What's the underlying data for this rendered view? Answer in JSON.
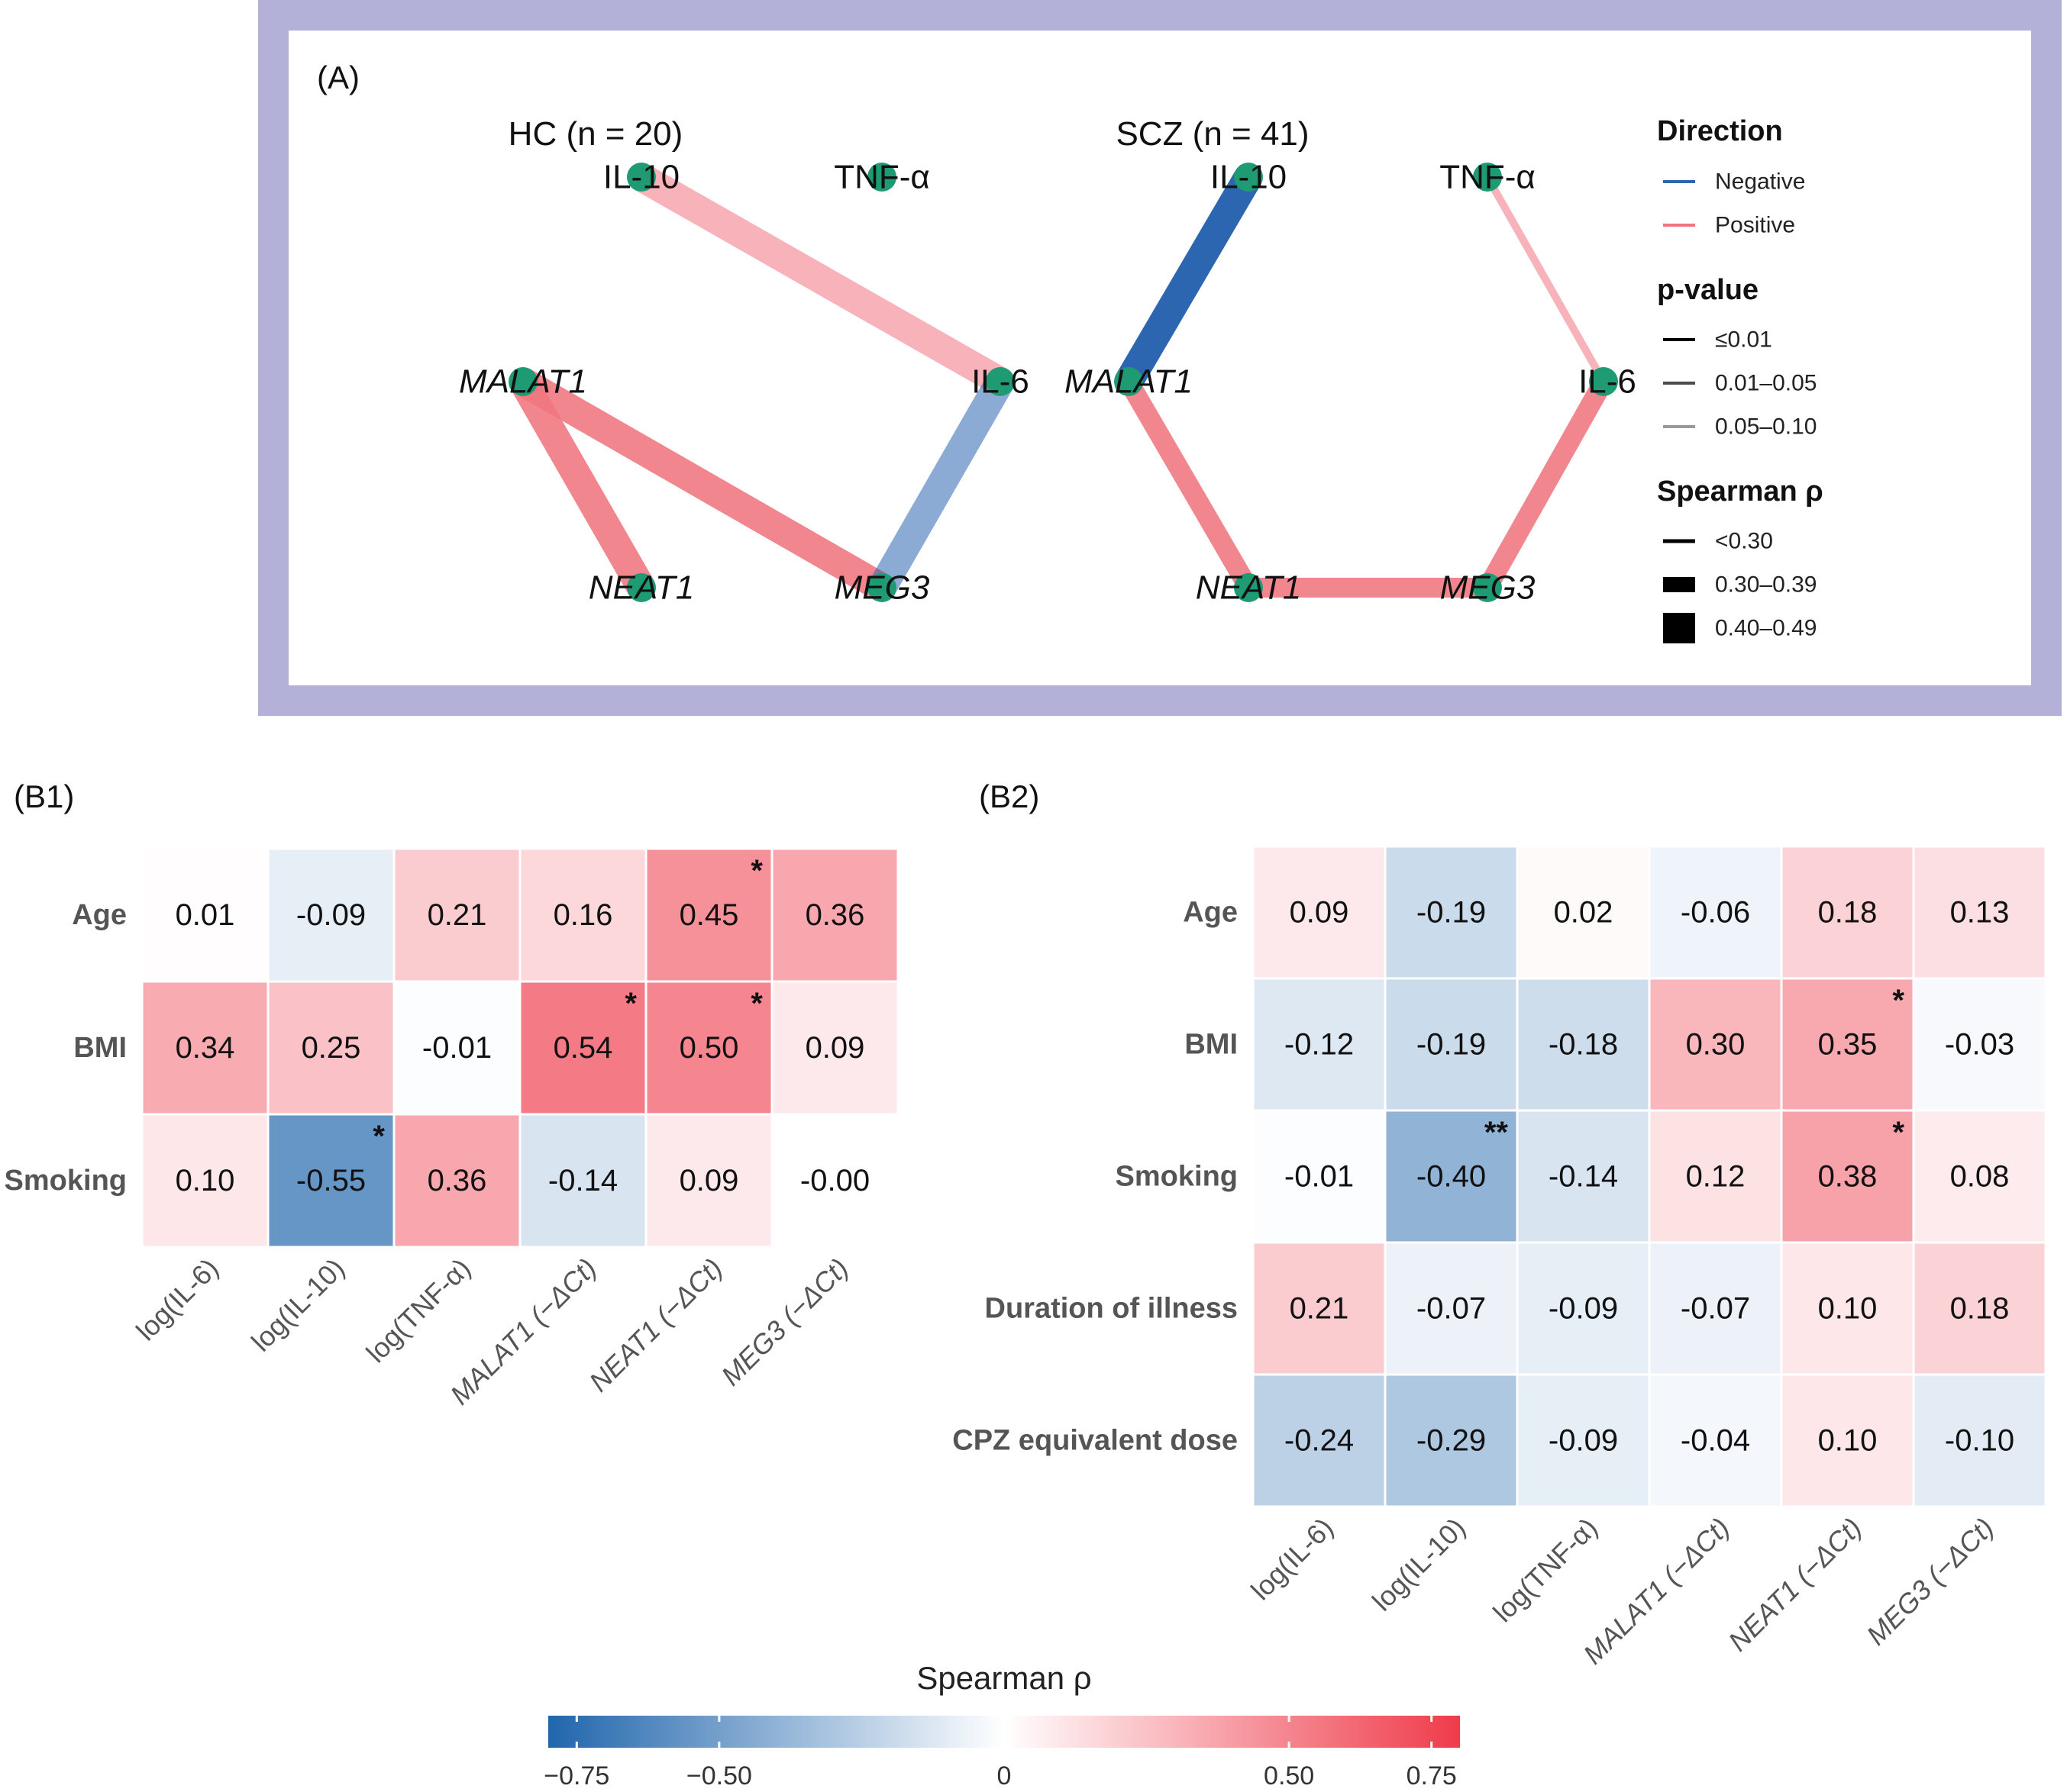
{
  "chart_data": [
    {
      "type": "network",
      "panel": "(A)",
      "colors": {
        "frame": "#b3b1d8",
        "node": "#1f9b73",
        "negative": "#2c66b0",
        "positive": "#f07580"
      },
      "legend": {
        "direction_title": "Direction",
        "direction_items": [
          "Negative",
          "Positive"
        ],
        "pvalue_title": "p-value",
        "pvalue_items": [
          "≤0.01",
          "0.01–0.05",
          "0.05–0.10"
        ],
        "rho_title": "Spearman ρ",
        "rho_items": [
          "<0.30",
          "0.30–0.39",
          "0.40–0.49"
        ]
      },
      "networks": [
        {
          "title": "HC (n = 20)",
          "nodes": [
            {
              "id": "IL-10",
              "label": "IL-10",
              "italic": false
            },
            {
              "id": "TNF",
              "label": "TNF-α",
              "italic": false
            },
            {
              "id": "MALAT1",
              "label": "MALAT1",
              "italic": true
            },
            {
              "id": "IL-6",
              "label": "IL-6",
              "italic": false
            },
            {
              "id": "NEAT1",
              "label": "NEAT1",
              "italic": true
            },
            {
              "id": "MEG3",
              "label": "MEG3",
              "italic": true
            }
          ],
          "edges": [
            {
              "from": "IL-10",
              "to": "IL-6",
              "direction": "Positive",
              "p": "0.05–0.10",
              "rho": "0.40–0.49"
            },
            {
              "from": "MALAT1",
              "to": "MEG3",
              "direction": "Positive",
              "p": "0.01–0.05",
              "rho": "0.40–0.49"
            },
            {
              "from": "MALAT1",
              "to": "NEAT1",
              "direction": "Positive",
              "p": "0.01–0.05",
              "rho": "0.40–0.49"
            },
            {
              "from": "IL-6",
              "to": "MEG3",
              "direction": "Negative",
              "p": "0.05–0.10",
              "rho": "0.40–0.49"
            }
          ]
        },
        {
          "title": "SCZ (n = 41)",
          "nodes": [
            {
              "id": "IL-10",
              "label": "IL-10",
              "italic": false
            },
            {
              "id": "TNF",
              "label": "TNF-α",
              "italic": false
            },
            {
              "id": "MALAT1",
              "label": "MALAT1",
              "italic": true
            },
            {
              "id": "IL-6",
              "label": "IL-6",
              "italic": false
            },
            {
              "id": "NEAT1",
              "label": "NEAT1",
              "italic": true
            },
            {
              "id": "MEG3",
              "label": "MEG3",
              "italic": true
            }
          ],
          "edges": [
            {
              "from": "IL-10",
              "to": "MALAT1",
              "direction": "Negative",
              "p": "≤0.01",
              "rho": "0.40–0.49"
            },
            {
              "from": "TNF",
              "to": "IL-6",
              "direction": "Positive",
              "p": "0.05–0.10",
              "rho": "<0.30"
            },
            {
              "from": "MALAT1",
              "to": "NEAT1",
              "direction": "Positive",
              "p": "0.01–0.05",
              "rho": "0.30–0.39"
            },
            {
              "from": "NEAT1",
              "to": "MEG3",
              "direction": "Positive",
              "p": "0.01–0.05",
              "rho": "0.30–0.39"
            },
            {
              "from": "IL-6",
              "to": "MEG3",
              "direction": "Positive",
              "p": "0.01–0.05",
              "rho": "0.30–0.39"
            }
          ]
        }
      ]
    },
    {
      "type": "heatmap",
      "panel": "(B1)",
      "rows": [
        "Age",
        "BMI",
        "Smoking"
      ],
      "columns": [
        {
          "label": "log(IL-6)",
          "italic": false
        },
        {
          "label": "log(IL-10)",
          "italic": false
        },
        {
          "label": "log(TNF-α)",
          "italic": false
        },
        {
          "label": "MALAT1 (−ΔCt)",
          "italic": true
        },
        {
          "label": "NEAT1 (−ΔCt)",
          "italic": true
        },
        {
          "label": "MEG3 (−ΔCt)",
          "italic": true
        }
      ],
      "values": [
        [
          0.01,
          -0.09,
          0.21,
          0.16,
          0.45,
          0.36
        ],
        [
          0.34,
          0.25,
          -0.01,
          0.54,
          0.5,
          0.09
        ],
        [
          0.1,
          -0.55,
          0.36,
          -0.14,
          0.09,
          -0.0
        ]
      ],
      "labels": [
        [
          "0.01",
          "-0.09",
          "0.21",
          "0.16",
          "0.45",
          "0.36"
        ],
        [
          "0.34",
          "0.25",
          "-0.01",
          "0.54",
          "0.50",
          "0.09"
        ],
        [
          "0.10",
          "-0.55",
          "0.36",
          "-0.14",
          "0.09",
          "-0.00"
        ]
      ],
      "stars": [
        [
          "",
          "",
          "",
          "",
          "*",
          ""
        ],
        [
          "",
          "",
          "",
          "*",
          "*",
          ""
        ],
        [
          "",
          "*",
          "",
          "",
          "",
          ""
        ]
      ]
    },
    {
      "type": "heatmap",
      "panel": "(B2)",
      "rows": [
        "Age",
        "BMI",
        "Smoking",
        "Duration of illness",
        "CPZ equivalent dose"
      ],
      "columns": [
        {
          "label": "log(IL-6)",
          "italic": false
        },
        {
          "label": "log(IL-10)",
          "italic": false
        },
        {
          "label": "log(TNF-α)",
          "italic": false
        },
        {
          "label": "MALAT1 (−ΔCt)",
          "italic": true
        },
        {
          "label": "NEAT1 (−ΔCt)",
          "italic": true
        },
        {
          "label": "MEG3 (−ΔCt)",
          "italic": true
        }
      ],
      "values": [
        [
          0.09,
          -0.19,
          0.02,
          -0.06,
          0.18,
          0.13
        ],
        [
          -0.12,
          -0.19,
          -0.18,
          0.3,
          0.35,
          -0.03
        ],
        [
          -0.01,
          -0.4,
          -0.14,
          0.12,
          0.38,
          0.08
        ],
        [
          0.21,
          -0.07,
          -0.09,
          -0.07,
          0.1,
          0.18
        ],
        [
          -0.24,
          -0.29,
          -0.09,
          -0.04,
          0.1,
          -0.1
        ]
      ],
      "labels": [
        [
          "0.09",
          "-0.19",
          "0.02",
          "-0.06",
          "0.18",
          "0.13"
        ],
        [
          "-0.12",
          "-0.19",
          "-0.18",
          "0.30",
          "0.35",
          "-0.03"
        ],
        [
          "-0.01",
          "-0.40",
          "-0.14",
          "0.12",
          "0.38",
          "0.08"
        ],
        [
          "0.21",
          "-0.07",
          "-0.09",
          "-0.07",
          "0.10",
          "0.18"
        ],
        [
          "-0.24",
          "-0.29",
          "-0.09",
          "-0.04",
          "0.10",
          "-0.10"
        ]
      ],
      "stars": [
        [
          "",
          "",
          "",
          "",
          "",
          ""
        ],
        [
          "",
          "",
          "",
          "",
          "*",
          ""
        ],
        [
          "",
          "**",
          "",
          "",
          "*",
          ""
        ],
        [
          "",
          "",
          "",
          "",
          "",
          ""
        ],
        [
          "",
          "",
          "",
          "",
          "",
          ""
        ]
      ]
    },
    {
      "type": "colorbar",
      "title": "Spearman ρ",
      "range": [
        -0.8,
        0.8
      ],
      "ticks": [
        -0.75,
        -0.5,
        0,
        0.5,
        0.75
      ],
      "tick_labels": [
        "−0.75",
        "−0.50",
        "0",
        "0.50",
        "0.75"
      ],
      "colors": {
        "low": "#2166ac",
        "mid": "#ffffff",
        "high": "#ef3b4a"
      }
    }
  ]
}
